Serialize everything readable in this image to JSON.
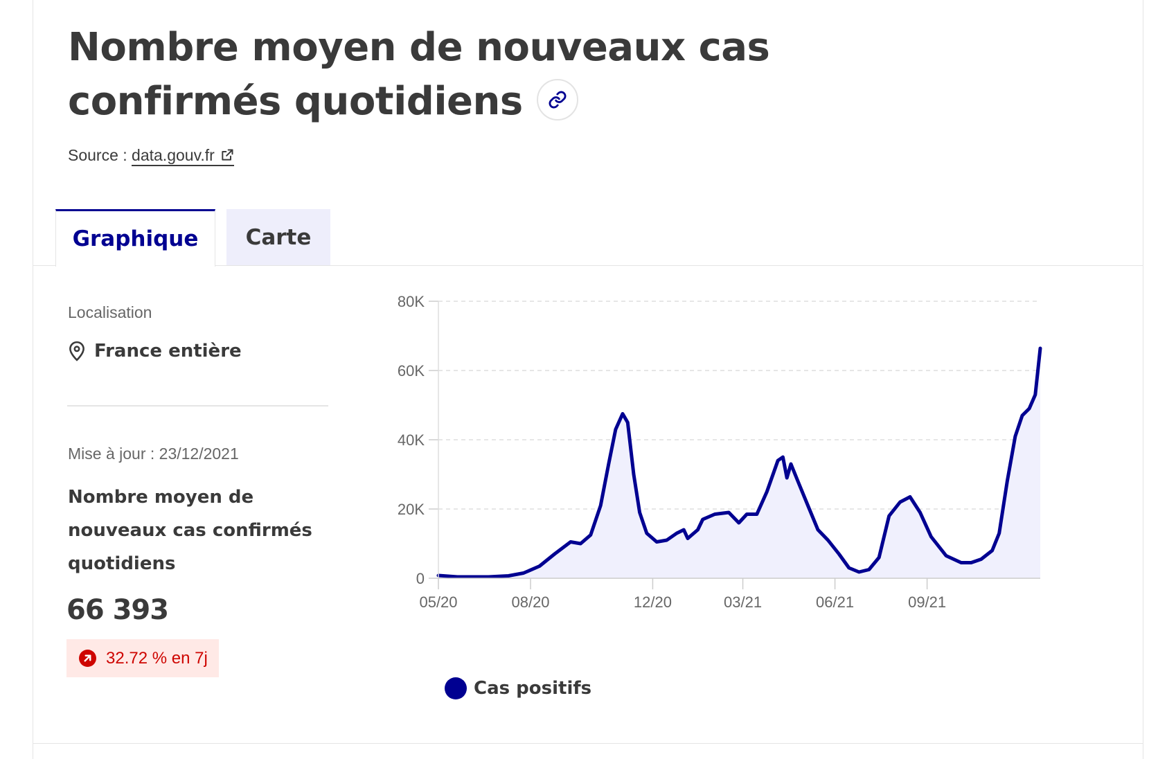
{
  "header": {
    "title": "Nombre moyen de nouveaux cas confirmés quotidiens",
    "source_label": "Source : ",
    "source_link": "data.gouv.fr"
  },
  "tabs": [
    {
      "label": "Graphique",
      "active": true
    },
    {
      "label": "Carte",
      "active": false
    }
  ],
  "sidebar": {
    "location_label": "Localisation",
    "location_value": "France entière",
    "update_text": "Mise à jour : 23/12/2021",
    "metric_title": "Nombre moyen de nouveaux cas confirmés quotidiens",
    "metric_value": "66 393",
    "badge_text": "32.72 % en 7j"
  },
  "colors": {
    "accent": "#000091",
    "area_fill": "#f0f0fd",
    "badge_bg": "#ffe9e6",
    "badge_fg": "#ce0500",
    "tab_inactive_bg": "#eeeefb"
  },
  "icons": {
    "title_link": "link-icon",
    "source_link": "external-link-icon",
    "location": "map-pin-icon",
    "trend": "arrow-up-right-icon"
  },
  "chart_data": {
    "type": "area",
    "title": "",
    "xlabel": "",
    "ylabel": "",
    "ylim": [
      0,
      80000
    ],
    "yticks": [
      0,
      20000,
      40000,
      60000,
      80000
    ],
    "ytick_labels": [
      "0",
      "20K",
      "40K",
      "60K",
      "80K"
    ],
    "xticks": [
      "2020-05-01",
      "2020-08-01",
      "2020-12-01",
      "2021-03-01",
      "2021-06-01",
      "2021-09-01"
    ],
    "xtick_labels": [
      "05/20",
      "08/20",
      "12/20",
      "03/21",
      "06/21",
      "09/21"
    ],
    "grid": true,
    "legend_position": "bottom-left",
    "series": [
      {
        "name": "Cas positifs",
        "points": [
          [
            "2020-05-01",
            800
          ],
          [
            "2020-05-20",
            400
          ],
          [
            "2020-06-20",
            400
          ],
          [
            "2020-07-10",
            700
          ],
          [
            "2020-07-25",
            1500
          ],
          [
            "2020-08-10",
            3500
          ],
          [
            "2020-08-25",
            7000
          ],
          [
            "2020-09-10",
            10500
          ],
          [
            "2020-09-20",
            10000
          ],
          [
            "2020-09-30",
            12500
          ],
          [
            "2020-10-10",
            21000
          ],
          [
            "2020-10-18",
            33000
          ],
          [
            "2020-10-25",
            43000
          ],
          [
            "2020-11-01",
            47500
          ],
          [
            "2020-11-06",
            45000
          ],
          [
            "2020-11-12",
            30000
          ],
          [
            "2020-11-18",
            19000
          ],
          [
            "2020-11-25",
            13000
          ],
          [
            "2020-12-05",
            10500
          ],
          [
            "2020-12-15",
            11000
          ],
          [
            "2020-12-25",
            13000
          ],
          [
            "2021-01-01",
            14000
          ],
          [
            "2021-01-05",
            11500
          ],
          [
            "2021-01-15",
            14000
          ],
          [
            "2021-01-20",
            17000
          ],
          [
            "2021-02-01",
            18500
          ],
          [
            "2021-02-15",
            19000
          ],
          [
            "2021-02-25",
            16000
          ],
          [
            "2021-03-05",
            18500
          ],
          [
            "2021-03-15",
            18500
          ],
          [
            "2021-03-25",
            25000
          ],
          [
            "2021-04-05",
            34000
          ],
          [
            "2021-04-10",
            35000
          ],
          [
            "2021-04-14",
            29000
          ],
          [
            "2021-04-18",
            33000
          ],
          [
            "2021-04-25",
            28000
          ],
          [
            "2021-05-05",
            21000
          ],
          [
            "2021-05-15",
            14000
          ],
          [
            "2021-05-25",
            11000
          ],
          [
            "2021-06-05",
            7000
          ],
          [
            "2021-06-15",
            3000
          ],
          [
            "2021-06-25",
            1800
          ],
          [
            "2021-07-05",
            2500
          ],
          [
            "2021-07-15",
            6000
          ],
          [
            "2021-07-25",
            18000
          ],
          [
            "2021-08-05",
            22000
          ],
          [
            "2021-08-15",
            23500
          ],
          [
            "2021-08-25",
            19000
          ],
          [
            "2021-09-05",
            12000
          ],
          [
            "2021-09-20",
            6500
          ],
          [
            "2021-10-05",
            4500
          ],
          [
            "2021-10-15",
            4500
          ],
          [
            "2021-10-25",
            5500
          ],
          [
            "2021-11-05",
            8000
          ],
          [
            "2021-11-12",
            13000
          ],
          [
            "2021-11-20",
            28000
          ],
          [
            "2021-11-28",
            41000
          ],
          [
            "2021-12-05",
            47000
          ],
          [
            "2021-12-12",
            49000
          ],
          [
            "2021-12-18",
            53000
          ],
          [
            "2021-12-23",
            66393
          ]
        ]
      }
    ]
  }
}
